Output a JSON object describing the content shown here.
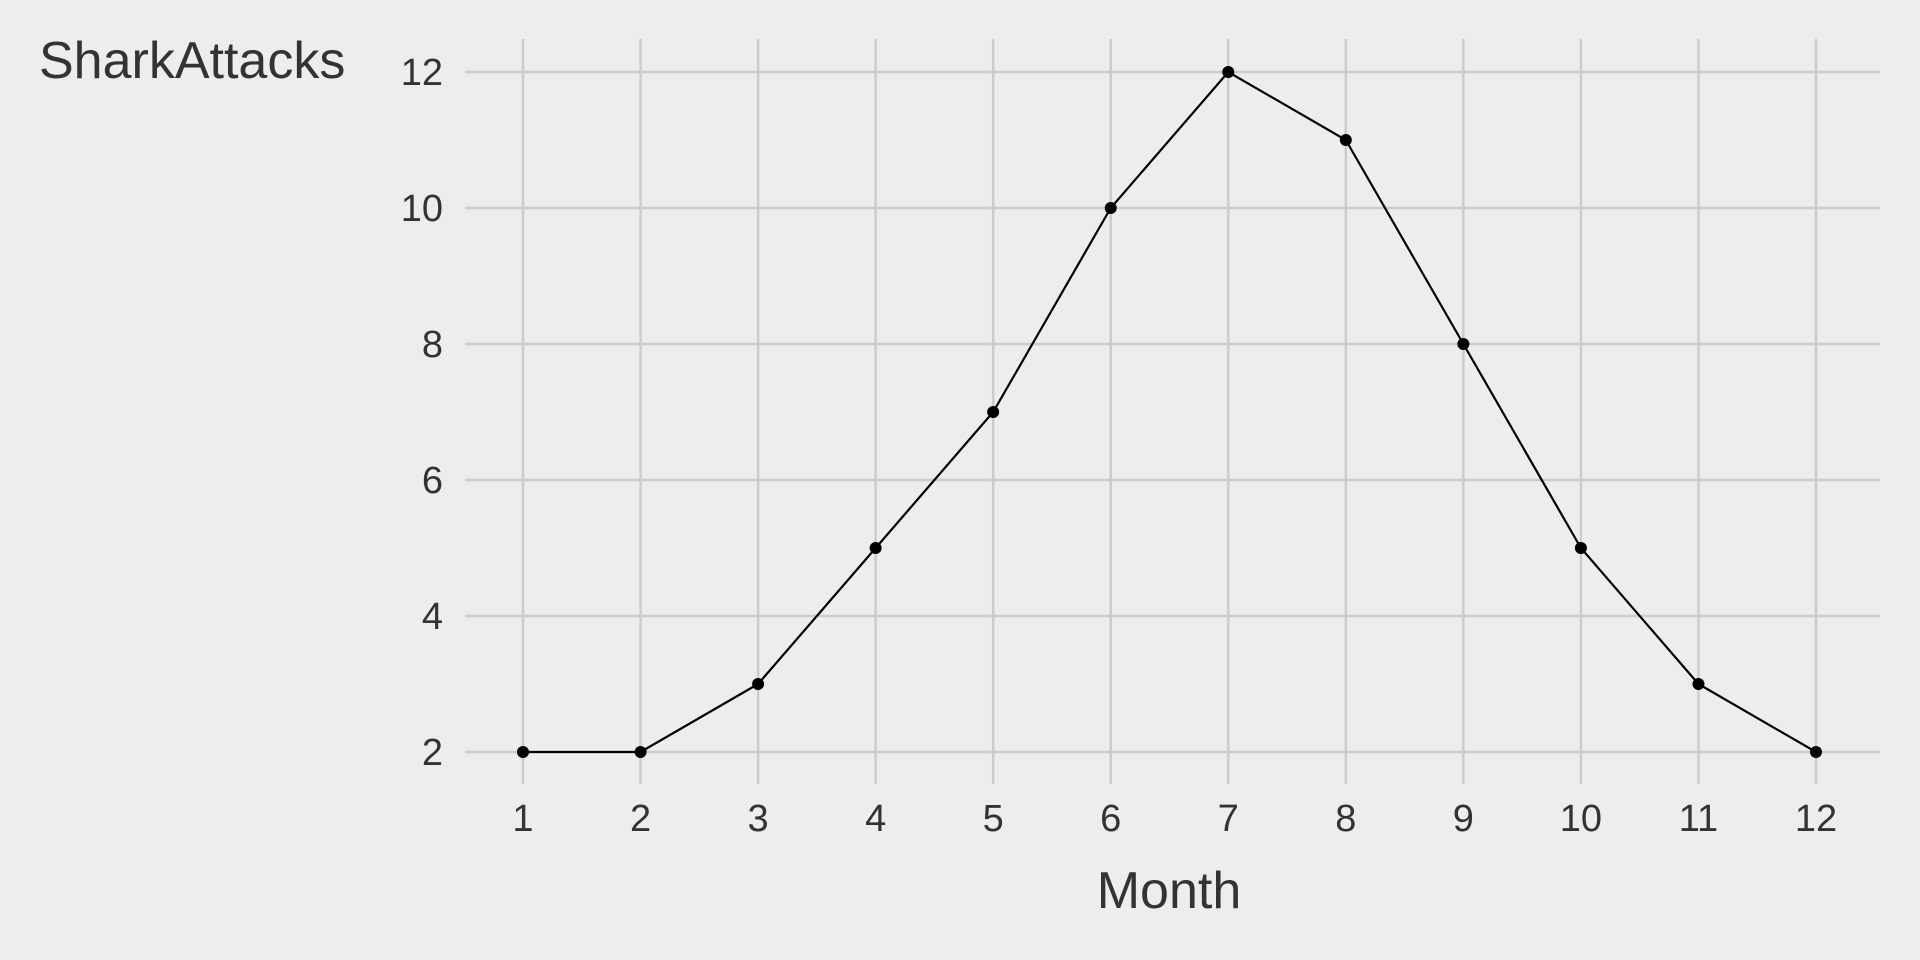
{
  "chart_data": {
    "type": "line",
    "title": "",
    "xlabel": "Month",
    "ylabel": "SharkAttacks",
    "x": [
      1,
      2,
      3,
      4,
      5,
      6,
      7,
      8,
      9,
      10,
      11,
      12
    ],
    "values": [
      2,
      2,
      3,
      5,
      7,
      10,
      12,
      11,
      8,
      5,
      3,
      2
    ],
    "x_ticks": [
      "1",
      "2",
      "3",
      "4",
      "5",
      "6",
      "7",
      "8",
      "9",
      "10",
      "11",
      "12"
    ],
    "y_ticks": [
      "2",
      "4",
      "6",
      "8",
      "10",
      "12"
    ],
    "xlim": [
      0.5,
      12.5
    ],
    "ylim": [
      1.5,
      12.5
    ],
    "grid": true,
    "markers": true,
    "line_color": "#000000",
    "grid_color": "#cccccc",
    "background": "#ededed"
  }
}
